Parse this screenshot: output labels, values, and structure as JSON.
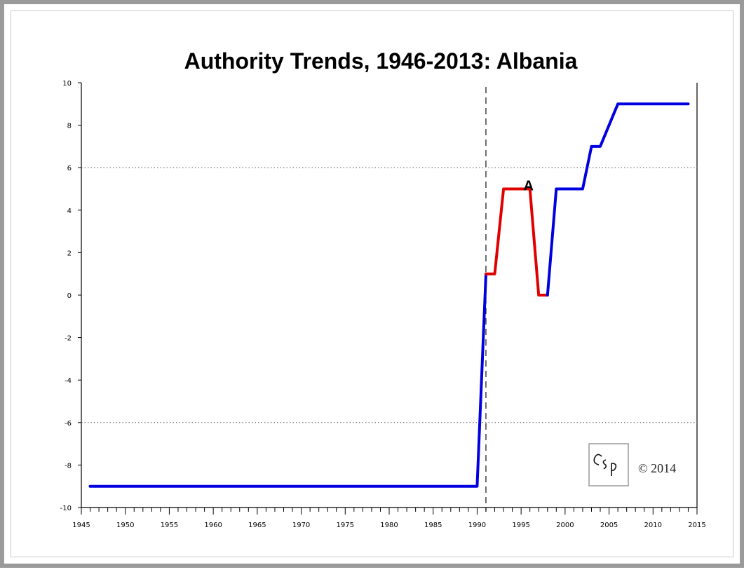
{
  "chart_data": {
    "type": "line",
    "title": "Authority Trends, 1946-2013: Albania",
    "xlabel": "",
    "ylabel": "",
    "xlim": [
      1945,
      2015
    ],
    "ylim": [
      -10,
      10
    ],
    "yticks": [
      10,
      8,
      6,
      4,
      2,
      0,
      -2,
      -4,
      -6,
      -8,
      -10
    ],
    "xticks": [
      1945,
      1950,
      1955,
      1960,
      1965,
      1970,
      1975,
      1980,
      1985,
      1990,
      1995,
      2000,
      2005,
      2010,
      2015
    ],
    "reference_lines": [
      6,
      -6
    ],
    "event_line_year": 1991,
    "series": [
      {
        "color": "#0000e0",
        "points": [
          [
            1946,
            -9
          ],
          [
            1990,
            -9
          ],
          [
            1991,
            1
          ]
        ]
      },
      {
        "color": "#e00000",
        "points": [
          [
            1991,
            1
          ],
          [
            1992,
            1
          ],
          [
            1993,
            5
          ],
          [
            1996,
            5
          ],
          [
            1997,
            0
          ],
          [
            1998,
            0
          ]
        ]
      },
      {
        "color": "#0000e0",
        "points": [
          [
            1998,
            0
          ],
          [
            1999,
            5
          ],
          [
            2002,
            5
          ],
          [
            2003,
            7
          ],
          [
            2004,
            7
          ],
          [
            2006,
            9
          ],
          [
            2014,
            9
          ]
        ]
      }
    ],
    "annotations": [
      {
        "text": "A",
        "x": 1996,
        "y": 5
      }
    ],
    "logo": {
      "text": "CSP"
    },
    "copyright": "© 2014"
  }
}
